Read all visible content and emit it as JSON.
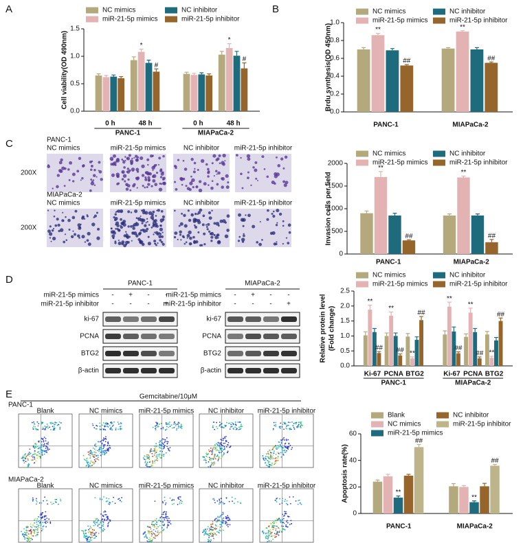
{
  "panel_labels": [
    "A",
    "B",
    "C",
    "D",
    "E"
  ],
  "chart_data": [
    {
      "type": "bar",
      "y_label": "Cell viability(OD 490nm)",
      "categories": [
        "0 h",
        "48 h",
        "0 h",
        "48 h"
      ],
      "groups": [
        "PANC-1",
        "MIAPaCa-2"
      ],
      "ylim": [
        0,
        1.5
      ],
      "yticks": [
        {
          "value": 0,
          "label": "0.0"
        },
        0.5,
        {
          "value": 1,
          "label": "1.0"
        },
        1.5
      ],
      "series": [
        {
          "name": "NC mimics",
          "color": "#b3a97c",
          "values": [
            0.65,
            0.93,
            0.68,
            1.03
          ],
          "errors": [
            0.03,
            0.06,
            0.03,
            0.06
          ],
          "annotations": [
            null,
            null,
            null,
            null
          ]
        },
        {
          "name": "miR-21-5p mimics",
          "color": "#e3b3b3",
          "values": [
            0.62,
            1.08,
            0.66,
            1.15
          ],
          "errors": [
            0.03,
            0.05,
            0.03,
            0.08
          ],
          "annotations": [
            null,
            "*",
            null,
            "*"
          ]
        },
        {
          "name": "NC inhibitor",
          "color": "#1e6b7e",
          "values": [
            0.63,
            0.88,
            0.67,
            1.01
          ],
          "errors": [
            0.03,
            0.05,
            0.03,
            0.08
          ],
          "annotations": [
            null,
            null,
            null,
            null
          ]
        },
        {
          "name": "miR-21-5p inhibitor",
          "color": "#95652c",
          "values": [
            0.6,
            0.72,
            0.65,
            0.78
          ],
          "errors": [
            0.03,
            0.05,
            0.03,
            0.1
          ],
          "annotations": [
            null,
            "#",
            null,
            "#"
          ]
        }
      ]
    },
    {
      "type": "bar",
      "y_label": "Brdu synthesis(OD 450nm)",
      "categories": [
        "PANC-1",
        "MIAPaCa-2"
      ],
      "ylim": [
        0,
        1
      ],
      "yticks": [
        {
          "value": 0,
          "label": "0.0"
        },
        0.2,
        0.4,
        0.6,
        0.8,
        {
          "value": 1,
          "label": "1.0"
        }
      ],
      "series": [
        {
          "name": "NC mimics",
          "color": "#b3a97c",
          "values": [
            0.7,
            0.71
          ],
          "errors": [
            0.02,
            0.01
          ],
          "annotations": [
            null,
            null
          ]
        },
        {
          "name": "miR-21-5p mimics",
          "color": "#e3b3b3",
          "values": [
            0.86,
            0.9
          ],
          "errors": [
            0.02,
            0.01
          ],
          "annotations": [
            "**",
            "**"
          ]
        },
        {
          "name": "NC inhibitor",
          "color": "#1e6b7e",
          "values": [
            0.69,
            0.7
          ],
          "errors": [
            0.02,
            0.02
          ],
          "annotations": [
            null,
            null
          ]
        },
        {
          "name": "miR-21-5p inhibitor",
          "color": "#95652c",
          "values": [
            0.52,
            0.55
          ],
          "errors": [
            0.01,
            0.01
          ],
          "annotations": [
            "##",
            "##"
          ]
        }
      ]
    },
    {
      "type": "bar",
      "y_label": "Invasion cells per field",
      "categories": [
        "PANC-1",
        "MIAPaCa-2"
      ],
      "ylim": [
        0,
        2000
      ],
      "yticks": [
        0,
        500,
        1000,
        1500,
        2000
      ],
      "series": [
        {
          "name": "NC mimics",
          "color": "#b3a97c",
          "values": [
            900,
            850
          ],
          "errors": [
            50,
            35
          ],
          "annotations": [
            null,
            null
          ]
        },
        {
          "name": "miR-21-5p mimics",
          "color": "#e3b3b3",
          "values": [
            1700,
            1690
          ],
          "errors": [
            120,
            30
          ],
          "annotations": [
            "**",
            "**"
          ]
        },
        {
          "name": "NC inhibitor",
          "color": "#1e6b7e",
          "values": [
            850,
            850
          ],
          "errors": [
            50,
            35
          ],
          "annotations": [
            null,
            null
          ]
        },
        {
          "name": "miR-21-5p inhibitor",
          "color": "#95652c",
          "values": [
            300,
            260
          ],
          "errors": [
            15,
            60
          ],
          "annotations": [
            "##",
            "##"
          ]
        }
      ]
    },
    {
      "type": "bar",
      "y_label": [
        "Relative protein level",
        "(Fold change)"
      ],
      "categories": [
        "Ki-67",
        "PCNA",
        "BTG2",
        "Ki-67",
        "PCNA",
        "BTG2"
      ],
      "groups": [
        "PANC-1",
        "MIAPaCa-2"
      ],
      "ylim": [
        0,
        2.5
      ],
      "yticks": [
        {
          "value": 0,
          "label": "0.0"
        },
        0.5,
        {
          "value": 1,
          "label": "1.0"
        },
        1.5,
        {
          "value": 2,
          "label": "2.0"
        },
        2.5
      ],
      "series": [
        {
          "name": "NC mimics",
          "color": "#b3a97c",
          "values": [
            1.02,
            1.0,
            0.98,
            1.05,
            0.97,
            1.05
          ],
          "errors": [
            0.12,
            0.1,
            0.1,
            0.12,
            0.1,
            0.1
          ],
          "annotations": [
            null,
            null,
            null,
            null,
            null,
            null
          ]
        },
        {
          "name": "miR-21-5p mimics",
          "color": "#e3b3b3",
          "values": [
            1.88,
            1.68,
            0.25,
            1.98,
            1.78,
            0.27
          ],
          "errors": [
            0.15,
            0.12,
            0.05,
            0.15,
            0.15,
            0.05
          ],
          "annotations": [
            "**",
            "**",
            "**",
            "**",
            "**",
            "**"
          ]
        },
        {
          "name": "NC inhibitor",
          "color": "#1e6b7e",
          "values": [
            1.13,
            1.0,
            0.87,
            1.15,
            1.13,
            0.85
          ],
          "errors": [
            0.12,
            0.1,
            0.1,
            0.15,
            0.12,
            0.1
          ],
          "annotations": [
            null,
            null,
            null,
            null,
            null,
            null
          ]
        },
        {
          "name": "miR-21-5p inhibitor",
          "color": "#95652c",
          "values": [
            0.43,
            0.35,
            1.53,
            0.42,
            0.25,
            1.5
          ],
          "errors": [
            0.05,
            0.05,
            0.12,
            0.05,
            0.05,
            0.1
          ],
          "annotations": [
            "##",
            "##",
            "##",
            "##",
            "##",
            "##"
          ]
        }
      ]
    },
    {
      "type": "bar",
      "y_label": "Apoptosis rate(%)",
      "categories": [
        "PANC-1",
        "MIAPaCa-2"
      ],
      "ylim": [
        0,
        60
      ],
      "yticks": [
        0,
        20,
        40,
        60
      ],
      "series": [
        {
          "name": "Blank",
          "color": "#b3a97c",
          "values": [
            24,
            20.5
          ],
          "errors": [
            1.2,
            2
          ],
          "annotations": [
            null,
            null
          ]
        },
        {
          "name": "NC mimics",
          "color": "#e3b3b3",
          "values": [
            28,
            20
          ],
          "errors": [
            1.5,
            1
          ],
          "annotations": [
            null,
            null
          ]
        },
        {
          "name": "miR-21-5p mimics",
          "color": "#1e6b7e",
          "values": [
            12,
            8.5
          ],
          "errors": [
            1.2,
            1
          ],
          "annotations": [
            "**",
            "**"
          ]
        },
        {
          "name": "NC inhibitor",
          "color": "#95652c",
          "values": [
            28.5,
            20.5
          ],
          "errors": [
            1,
            2.2
          ],
          "annotations": [
            null,
            null
          ]
        },
        {
          "name": "miR-21-5p inhibitor",
          "color": "#bdb48a",
          "values": [
            50,
            36
          ],
          "errors": [
            2,
            1
          ],
          "annotations": [
            "##",
            "##"
          ]
        }
      ]
    }
  ],
  "invasion": {
    "rows": [
      {
        "cell_line": "PANC-1",
        "magnification": "200X"
      },
      {
        "cell_line": "MIAPaCa-2",
        "magnification": "200X"
      }
    ],
    "columns": [
      "NC mimics",
      "miR-21-5p mimics",
      "NC inhibitor",
      "miR-21-5p inhibitor"
    ]
  },
  "western": {
    "blots": [
      "PANC-1",
      "MIAPaCa-2"
    ],
    "conditions": [
      {
        "label": "miR-21-5p mimics",
        "signs": [
          "-",
          "+",
          "-",
          "-"
        ]
      },
      {
        "label": "miR-21-5p inhibitor",
        "signs": [
          "-",
          "-",
          "-",
          "+"
        ]
      }
    ],
    "proteins": [
      "ki-67",
      "PCNA",
      "BTG2",
      "β-actin"
    ]
  },
  "flow": {
    "title": "Gemcitabine/10μM",
    "rows": [
      "PANC-1",
      "MIAPaCa-2"
    ],
    "columns": [
      "Blank",
      "NC mimics",
      "miR-21-5p mimics",
      "NC inhibitor",
      "miR-21-5p inhibitor"
    ]
  }
}
